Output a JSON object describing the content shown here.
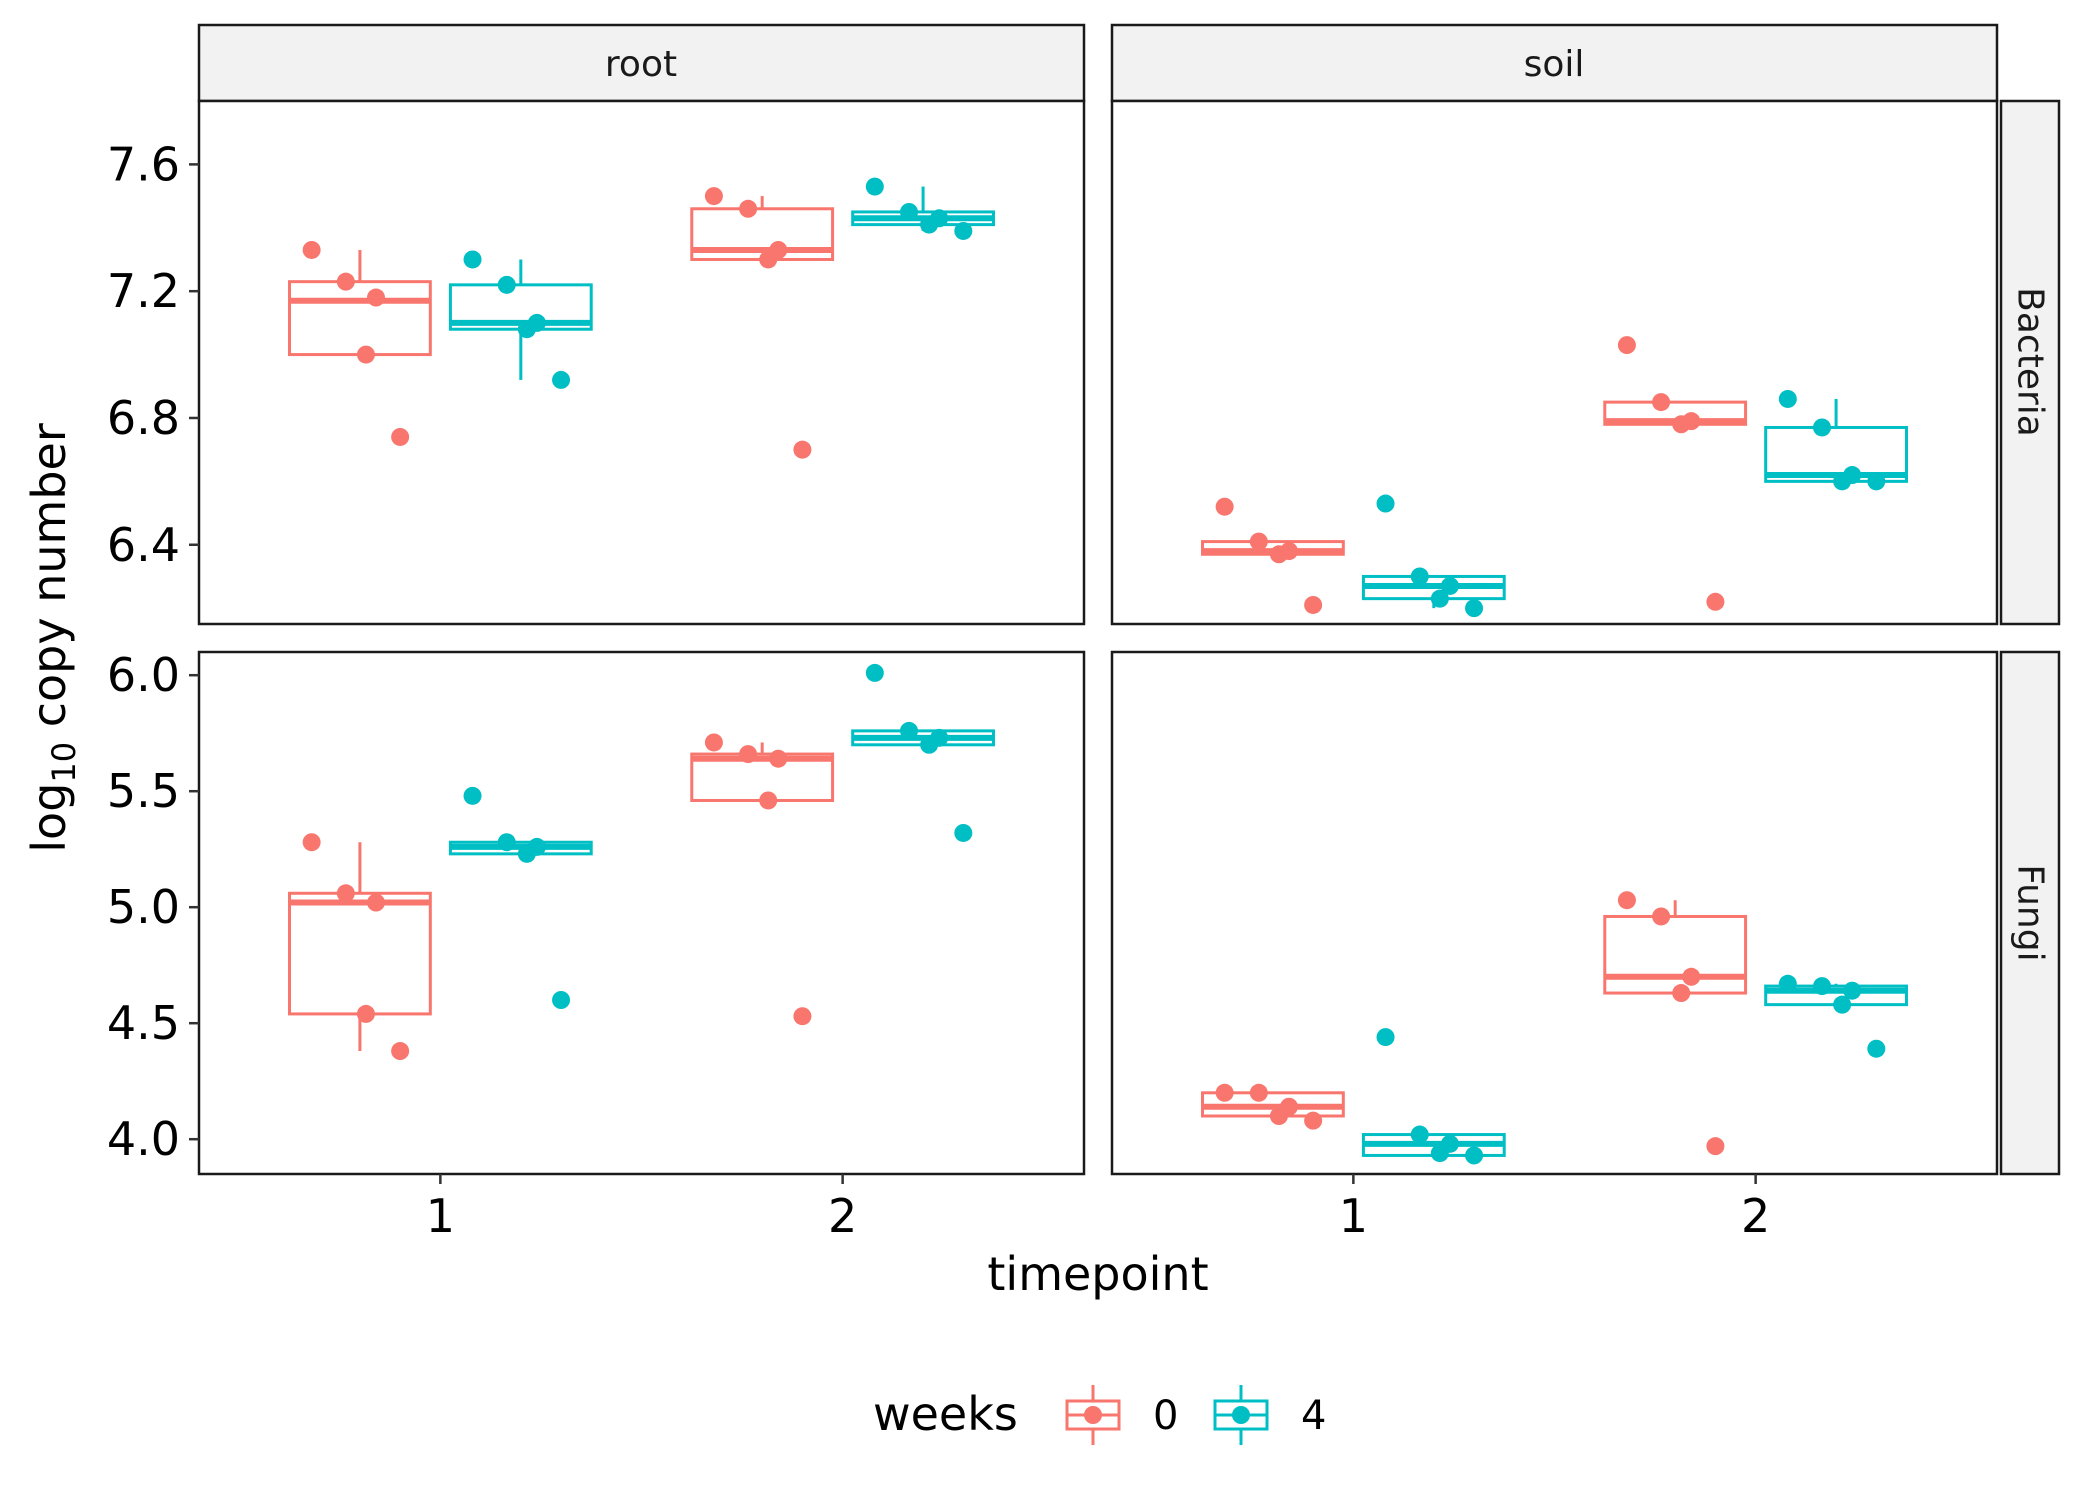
{
  "chart_data": {
    "type": "boxplot",
    "facets": {
      "columns": [
        "root",
        "soil"
      ],
      "rows": [
        "Bacteria",
        "Fungi"
      ]
    },
    "xlabel": "timepoint",
    "ylabel": {
      "prefix": "log",
      "subscript": "10",
      "suffix": " copy number"
    },
    "x_ticks": [
      "1",
      "2"
    ],
    "y_axes": {
      "Bacteria": {
        "range": [
          6.15,
          7.8
        ],
        "ticks": [
          "6.4",
          "6.8",
          "7.2",
          "7.6"
        ]
      },
      "Fungi": {
        "range": [
          3.85,
          6.1
        ],
        "ticks": [
          "4.0",
          "4.5",
          "5.0",
          "5.5",
          "6.0"
        ]
      }
    },
    "legend": {
      "title": "weeks",
      "position": "bottom",
      "entries": [
        {
          "label": "0",
          "color": "#F8766D"
        },
        {
          "label": "4",
          "color": "#00BFC4"
        }
      ]
    },
    "panels": [
      {
        "column": "root",
        "row": "Bacteria",
        "groups": [
          {
            "timepoint": 1,
            "weeks": "0",
            "box": {
              "lower": 7.0,
              "q1": 7.0,
              "median": 7.17,
              "q3": 7.23,
              "upper": 7.33
            },
            "points": [
              7.33,
              7.23,
              7.18,
              7.0,
              6.74
            ]
          },
          {
            "timepoint": 1,
            "weeks": "4",
            "box": {
              "lower": 6.92,
              "q1": 7.08,
              "median": 7.1,
              "q3": 7.22,
              "upper": 7.3
            },
            "points": [
              7.3,
              7.22,
              7.1,
              7.08,
              6.92
            ]
          },
          {
            "timepoint": 2,
            "weeks": "0",
            "box": {
              "lower": 7.3,
              "q1": 7.3,
              "median": 7.33,
              "q3": 7.46,
              "upper": 7.5
            },
            "points": [
              7.5,
              7.46,
              7.33,
              7.3,
              6.7
            ]
          },
          {
            "timepoint": 2,
            "weeks": "4",
            "box": {
              "lower": 7.39,
              "q1": 7.41,
              "median": 7.43,
              "q3": 7.45,
              "upper": 7.53
            },
            "points": [
              7.53,
              7.45,
              7.43,
              7.41,
              7.39
            ]
          }
        ]
      },
      {
        "column": "soil",
        "row": "Bacteria",
        "groups": [
          {
            "timepoint": 1,
            "weeks": "0",
            "box": {
              "lower": 6.37,
              "q1": 6.37,
              "median": 6.38,
              "q3": 6.41,
              "upper": 6.41
            },
            "points": [
              6.52,
              6.41,
              6.38,
              6.37,
              6.21
            ]
          },
          {
            "timepoint": 1,
            "weeks": "4",
            "box": {
              "lower": 6.2,
              "q1": 6.23,
              "median": 6.27,
              "q3": 6.3,
              "upper": 6.3
            },
            "points": [
              6.53,
              6.3,
              6.27,
              6.23,
              6.2
            ]
          },
          {
            "timepoint": 2,
            "weeks": "0",
            "box": {
              "lower": 6.78,
              "q1": 6.78,
              "median": 6.79,
              "q3": 6.85,
              "upper": 6.85
            },
            "points": [
              7.03,
              6.85,
              6.79,
              6.78,
              6.22
            ]
          },
          {
            "timepoint": 2,
            "weeks": "4",
            "box": {
              "lower": 6.6,
              "q1": 6.6,
              "median": 6.62,
              "q3": 6.77,
              "upper": 6.86
            },
            "points": [
              6.86,
              6.77,
              6.62,
              6.6,
              6.6
            ]
          }
        ]
      },
      {
        "column": "root",
        "row": "Fungi",
        "groups": [
          {
            "timepoint": 1,
            "weeks": "0",
            "box": {
              "lower": 4.38,
              "q1": 4.54,
              "median": 5.02,
              "q3": 5.06,
              "upper": 5.28
            },
            "points": [
              5.28,
              5.06,
              5.02,
              4.54,
              4.38
            ]
          },
          {
            "timepoint": 1,
            "weeks": "4",
            "box": {
              "lower": 5.23,
              "q1": 5.23,
              "median": 5.26,
              "q3": 5.28,
              "upper": 5.28
            },
            "points": [
              5.48,
              5.28,
              5.26,
              5.23,
              4.6
            ]
          },
          {
            "timepoint": 2,
            "weeks": "0",
            "box": {
              "lower": 5.46,
              "q1": 5.46,
              "median": 5.64,
              "q3": 5.66,
              "upper": 5.71
            },
            "points": [
              5.71,
              5.66,
              5.64,
              5.46,
              4.53
            ]
          },
          {
            "timepoint": 2,
            "weeks": "4",
            "box": {
              "lower": 5.7,
              "q1": 5.7,
              "median": 5.73,
              "q3": 5.76,
              "upper": 5.76
            },
            "points": [
              6.01,
              5.76,
              5.73,
              5.7,
              5.32
            ]
          }
        ]
      },
      {
        "column": "soil",
        "row": "Fungi",
        "groups": [
          {
            "timepoint": 1,
            "weeks": "0",
            "box": {
              "lower": 4.08,
              "q1": 4.1,
              "median": 4.14,
              "q3": 4.2,
              "upper": 4.2
            },
            "points": [
              4.2,
              4.2,
              4.14,
              4.1,
              4.08
            ]
          },
          {
            "timepoint": 1,
            "weeks": "4",
            "box": {
              "lower": 3.93,
              "q1": 3.93,
              "median": 3.98,
              "q3": 4.02,
              "upper": 4.02
            },
            "points": [
              4.44,
              4.02,
              3.98,
              3.94,
              3.93
            ]
          },
          {
            "timepoint": 2,
            "weeks": "0",
            "box": {
              "lower": 4.63,
              "q1": 4.63,
              "median": 4.7,
              "q3": 4.96,
              "upper": 5.03
            },
            "points": [
              5.03,
              4.96,
              4.7,
              4.63,
              3.97
            ]
          },
          {
            "timepoint": 2,
            "weeks": "4",
            "box": {
              "lower": 4.58,
              "q1": 4.58,
              "median": 4.64,
              "q3": 4.66,
              "upper": 4.67
            },
            "points": [
              4.67,
              4.66,
              4.64,
              4.58,
              4.39
            ]
          }
        ]
      }
    ]
  }
}
